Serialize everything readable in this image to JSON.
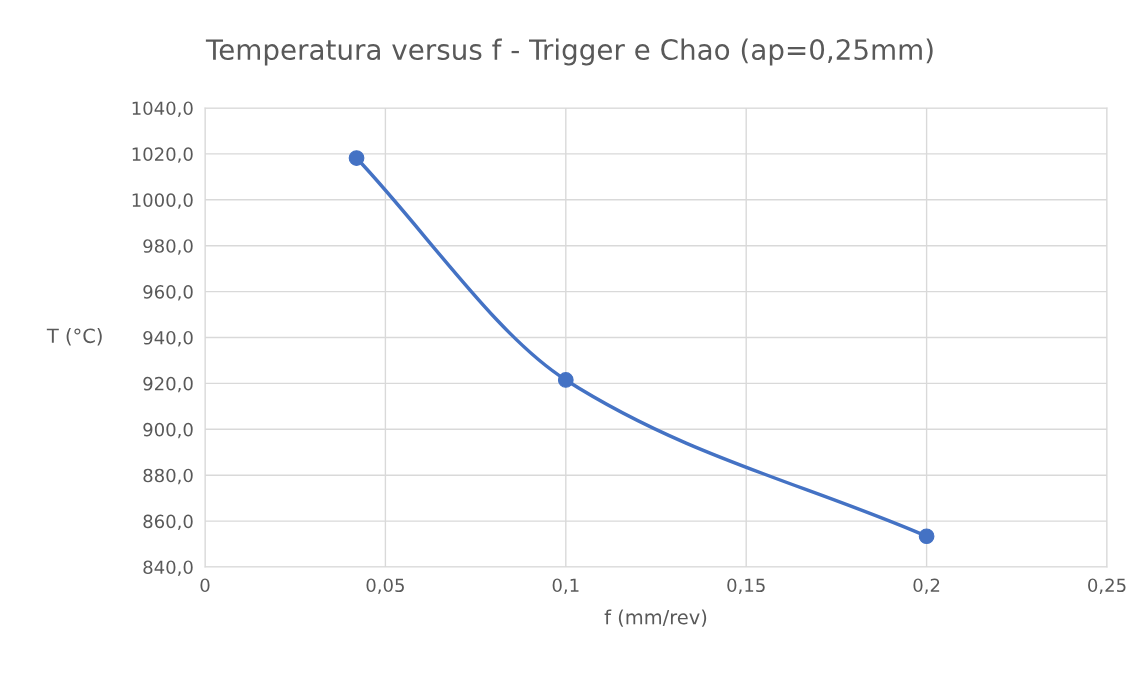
{
  "chart_data": {
    "type": "line",
    "title": "Temperatura versus f - Trigger e Chao (ap=0,25mm)",
    "xlabel": "f (mm/rev)",
    "ylabel": "T (°C)",
    "x": [
      0.042,
      0.1,
      0.2
    ],
    "series": [
      {
        "color": "#4472c4",
        "values": [
          1018.2,
          921.5,
          853.4
        ]
      }
    ],
    "xlim": [
      0,
      0.25
    ],
    "xticks": [
      0,
      {
        "value": 0.05,
        "label": "0,05"
      },
      {
        "value": 0.1,
        "label": "0,1"
      },
      {
        "value": 0.15,
        "label": "0,15"
      },
      {
        "value": 0.2,
        "label": "0,2"
      },
      {
        "value": 0.25,
        "label": "0,25"
      }
    ],
    "ylim": [
      840,
      1040
    ],
    "yticks": [
      {
        "value": 840,
        "label": "840,0"
      },
      {
        "value": 860,
        "label": "860,0"
      },
      {
        "value": 880,
        "label": "880,0"
      },
      {
        "value": 900,
        "label": "900,0"
      },
      {
        "value": 920,
        "label": "920,0"
      },
      {
        "value": 940,
        "label": "940,0"
      },
      {
        "value": 960,
        "label": "960,0"
      },
      {
        "value": 980,
        "label": "980,0"
      },
      {
        "value": 1000,
        "label": "1000,0"
      },
      {
        "value": 1020,
        "label": "1020,0"
      },
      {
        "value": 1040,
        "label": "1040,0"
      }
    ],
    "grid": true,
    "marker": "circle",
    "line_style": "solid",
    "legend": false
  }
}
